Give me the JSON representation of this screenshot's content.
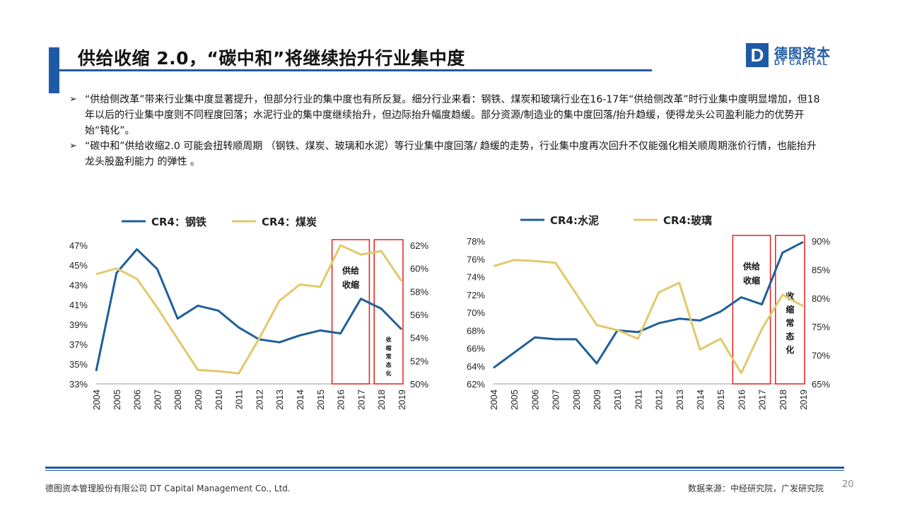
{
  "header": {
    "title": "供给收缩 2.0，“碳中和”将继续抬升行业集中度",
    "logo_cn": "德图资本",
    "logo_en": "DT CAPITAL",
    "logo_letter": "D"
  },
  "bullets": [
    "“供给侧改革”带来行业集中度显著提升，但部分行业的集中度也有所反复。细分行业来看：钢铁、煤炭和玻璃行业在16-17年“供给侧改革”时行业集中度明显增加，但18年以后的行业集中度则不同程度回落；水泥行业的集中度继续抬升，但边际抬升幅度趋缓。部分资源/制造业的集中度回落/抬升趋缓，使得龙头公司盈利能力的优势开始“钝化”。",
    "“碳中和”供给收缩2.0 可能会扭转顺周期 （钢铁、煤炭、玻璃和水泥）等行业集中度回落/ 趋缓的走势，行业集中度再次回升不仅能强化相关顺周期涨价行情，也能抬升龙头股盈利能力 的弹性 。"
  ],
  "bullet_icon": "➢",
  "colors": {
    "brand": "#1f5aa6",
    "series_blue": "#1f5f99",
    "series_yellow": "#e3c86a",
    "box": "#e02020"
  },
  "chart_data": [
    {
      "type": "line",
      "x": [
        "2004",
        "2005",
        "2006",
        "2007",
        "2008",
        "2009",
        "2010",
        "2011",
        "2012",
        "2013",
        "2014",
        "2015",
        "2016",
        "2017",
        "2018",
        "2019"
      ],
      "series": [
        {
          "name": "CR4：钢铁",
          "axis": "left",
          "color": "#1f5f99",
          "values": [
            34.3,
            44.2,
            46.6,
            44.6,
            39.6,
            40.9,
            40.4,
            38.7,
            37.5,
            37.2,
            37.9,
            38.4,
            38.1,
            41.6,
            40.6,
            38.5
          ]
        },
        {
          "name": "CR4：煤炭",
          "axis": "right",
          "color": "#e3c86a",
          "values": [
            59.5,
            60.0,
            59.1,
            56.6,
            53.9,
            51.2,
            51.1,
            50.9,
            53.9,
            57.2,
            58.6,
            58.4,
            62.0,
            61.2,
            61.5,
            58.9
          ]
        }
      ],
      "y_left": {
        "min": 33,
        "max": 47,
        "ticks": [
          "33%",
          "35%",
          "37%",
          "39%",
          "41%",
          "43%",
          "45%",
          "47%"
        ]
      },
      "y_right": {
        "min": 50,
        "max": 62,
        "ticks": [
          "50%",
          "52%",
          "54%",
          "56%",
          "58%",
          "60%",
          "62%"
        ]
      },
      "annotations": [
        {
          "text": "供给收缩",
          "from": "2016",
          "to": "2017"
        },
        {
          "text": "收缩常态化",
          "from": "2018",
          "to": "2019"
        }
      ],
      "legend": "top"
    },
    {
      "type": "line",
      "x": [
        "2004",
        "2005",
        "2006",
        "2007",
        "2008",
        "2009",
        "2010",
        "2011",
        "2012",
        "2013",
        "2014",
        "2015",
        "2016",
        "2017",
        "2018",
        "2019"
      ],
      "series": [
        {
          "name": "CR4:水泥",
          "axis": "left",
          "color": "#1f5f99",
          "values": [
            63.8,
            65.5,
            67.2,
            67.0,
            67.0,
            64.3,
            68.0,
            67.8,
            68.8,
            69.3,
            69.1,
            70.1,
            71.7,
            70.9,
            76.7,
            77.9
          ]
        },
        {
          "name": "CR4:玻璃",
          "axis": "right",
          "color": "#e3c86a",
          "values": [
            85.6,
            86.7,
            86.5,
            86.2,
            80.8,
            75.3,
            74.4,
            72.9,
            81.0,
            82.7,
            71.0,
            72.9,
            66.9,
            74.6,
            80.6,
            78.6
          ]
        }
      ],
      "y_left": {
        "min": 62,
        "max": 78,
        "ticks": [
          "62%",
          "64%",
          "66%",
          "68%",
          "70%",
          "72%",
          "74%",
          "76%",
          "78%"
        ]
      },
      "y_right": {
        "min": 65,
        "max": 90,
        "ticks": [
          "65%",
          "70%",
          "75%",
          "80%",
          "85%",
          "90%"
        ]
      },
      "annotations": [
        {
          "text": "供给收缩",
          "from": "2016",
          "to": "2017"
        },
        {
          "text": "收缩常态化",
          "from": "2018",
          "to": "2019"
        }
      ],
      "legend": "top"
    }
  ],
  "footer": {
    "company": "德图资本管理股份有限公司  DT Capital Management  Co., Ltd.",
    "source": "数据来源：中经研究院，广发研究院",
    "page": "20"
  }
}
